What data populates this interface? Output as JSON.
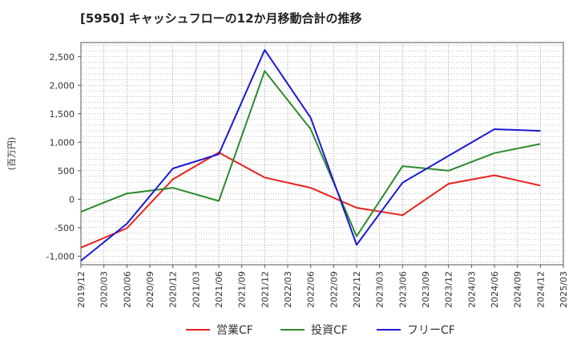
{
  "chart_data": {
    "type": "line",
    "title": "[5950]  キャッシュフローの12か月移動合計の推移",
    "ylabel": "(百万円)",
    "xlabel": "",
    "ylim": [
      -1150,
      2750
    ],
    "yticks": [
      2500,
      2000,
      1500,
      1000,
      500,
      0,
      -500,
      -1000
    ],
    "ytick_labels": [
      "2,500",
      "2,000",
      "1,500",
      "1,000",
      "500",
      "0",
      "-500",
      "-1,000"
    ],
    "xticks": [
      "2019/12",
      "2020/03",
      "2020/06",
      "2020/09",
      "2020/12",
      "2021/03",
      "2021/06",
      "2021/09",
      "2021/12",
      "2022/03",
      "2022/06",
      "2022/09",
      "2022/12",
      "2023/03",
      "2023/06",
      "2023/09",
      "2023/12",
      "2024/03",
      "2024/06",
      "2024/09",
      "2024/12",
      "2025/03"
    ],
    "grid": true,
    "legend_position": "bottom",
    "series": [
      {
        "name": "営業CF",
        "color": "#e8221b",
        "x": [
          "2019/12",
          "2020/06",
          "2020/12",
          "2021/06",
          "2021/12",
          "2022/06",
          "2022/12",
          "2023/06",
          "2023/12",
          "2024/06",
          "2024/12"
        ],
        "values": [
          -850,
          -510,
          350,
          820,
          380,
          200,
          -150,
          -280,
          270,
          420,
          240
        ]
      },
      {
        "name": "投資CF",
        "color": "#2c8a2c",
        "x": [
          "2019/12",
          "2020/06",
          "2020/12",
          "2021/06",
          "2021/12",
          "2022/06",
          "2022/12",
          "2023/06",
          "2023/12",
          "2024/06",
          "2024/12"
        ],
        "values": [
          -220,
          100,
          200,
          -30,
          2250,
          1230,
          -650,
          580,
          500,
          810,
          970
        ]
      },
      {
        "name": "フリーCF",
        "color": "#1a1ad6",
        "x": [
          "2019/12",
          "2020/06",
          "2020/12",
          "2021/06",
          "2021/12",
          "2022/06",
          "2022/12",
          "2023/06",
          "2023/12",
          "2024/06",
          "2024/12"
        ],
        "values": [
          -1080,
          -430,
          540,
          790,
          2620,
          1430,
          -800,
          290,
          760,
          1230,
          1200
        ]
      }
    ]
  }
}
